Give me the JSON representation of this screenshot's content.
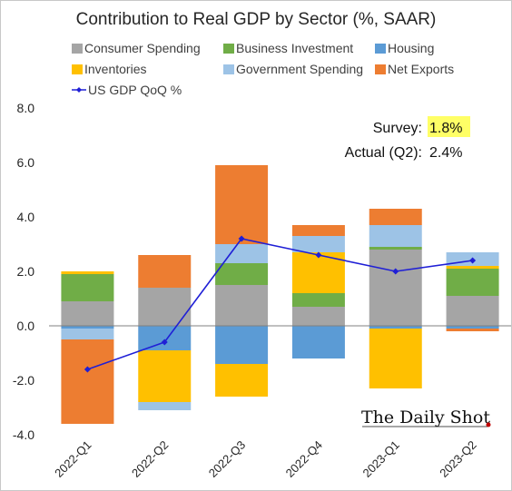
{
  "chart_data": {
    "type": "bar",
    "title": "Contribution to Real GDP by Sector (%, SAAR)",
    "categories": [
      "2022-Q1",
      "2022-Q2",
      "2022-Q3",
      "2022-Q4",
      "2023-Q1",
      "2023-Q2"
    ],
    "ylim": [
      -4.0,
      8.0
    ],
    "yticks": [
      "8.0",
      "6.0",
      "4.0",
      "2.0",
      "0.0",
      "-2.0",
      "-4.0"
    ],
    "ytick_values": [
      8,
      6,
      4,
      2,
      0,
      -2,
      -4
    ],
    "stacked": true,
    "series": [
      {
        "name": "Consumer Spending",
        "color": "#a5a5a5",
        "values": [
          0.9,
          1.4,
          1.5,
          0.7,
          2.8,
          1.1
        ]
      },
      {
        "name": "Business Investment",
        "color": "#70ad47",
        "values": [
          1.0,
          0.0,
          0.8,
          0.5,
          0.1,
          1.0
        ]
      },
      {
        "name": "Housing",
        "color": "#5b9bd5",
        "values": [
          -0.1,
          -0.9,
          -1.4,
          -1.2,
          -0.1,
          -0.1
        ]
      },
      {
        "name": "Inventories",
        "color": "#ffc000",
        "values": [
          0.1,
          -1.9,
          -1.2,
          1.5,
          -2.2,
          0.1
        ]
      },
      {
        "name": "Government Spending",
        "color": "#9dc3e6",
        "values": [
          -0.4,
          -0.3,
          0.7,
          0.6,
          0.8,
          0.5
        ]
      },
      {
        "name": "Net Exports",
        "color": "#ed7d31",
        "values": [
          -3.1,
          1.2,
          2.9,
          0.4,
          0.6,
          -0.1
        ]
      }
    ],
    "line": {
      "name": "US GDP QoQ %",
      "color": "#1f1fd6",
      "values": [
        -1.6,
        -0.6,
        3.2,
        2.6,
        2.0,
        2.4
      ]
    },
    "legend_position": "top",
    "grid": false,
    "annotations": {
      "survey_label": "Survey:",
      "survey_value": "1.8%",
      "actual_label": "Actual (Q2):",
      "actual_value": "2.4%",
      "highlight_color": "#ffff66"
    },
    "branding": "The Daily Shot"
  }
}
